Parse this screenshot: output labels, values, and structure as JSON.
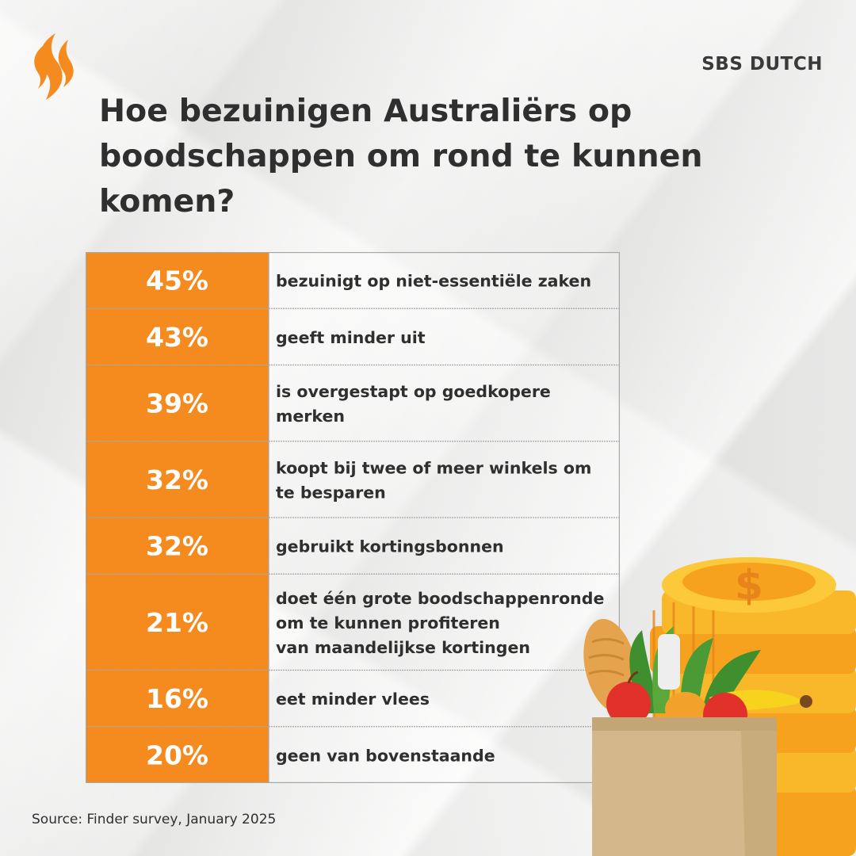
{
  "brand": "SBS DUTCH",
  "title": "Hoe bezuinigen Australiërs op boodschappen om rond te kunnen komen?",
  "source": "Source: Finder survey, January 2025",
  "colors": {
    "accent": "#f58a1f",
    "text": "#2f2f2f",
    "border": "#a7a7a7"
  },
  "icons": [
    "sbs-logo-icon",
    "coins-icon",
    "grocery-bag-icon"
  ],
  "chart_data": {
    "type": "table",
    "title": "Hoe bezuinigen Australiërs op boodschappen om rond te kunnen komen?",
    "unit": "%",
    "rows": [
      {
        "value": 45,
        "value_label": "45%",
        "label_lines": [
          "bezuinigt op niet-essentiële zaken"
        ]
      },
      {
        "value": 43,
        "value_label": "43%",
        "label_lines": [
          "geeft minder uit"
        ]
      },
      {
        "value": 39,
        "value_label": "39%",
        "label_lines": [
          "is overgestapt op goedkopere",
          "merken"
        ]
      },
      {
        "value": 32,
        "value_label": "32%",
        "label_lines": [
          "koopt bij twee of meer winkels om",
          "te besparen"
        ]
      },
      {
        "value": 32,
        "value_label": "32%",
        "label_lines": [
          "gebruikt kortingsbonnen"
        ]
      },
      {
        "value": 21,
        "value_label": "21%",
        "label_lines": [
          "doet één grote boodschappenronde",
          "om te kunnen profiteren",
          "van maandelijkse kortingen"
        ]
      },
      {
        "value": 16,
        "value_label": "16%",
        "label_lines": [
          "eet minder vlees"
        ]
      },
      {
        "value": 20,
        "value_label": "20%",
        "label_lines": [
          "geen van bovenstaande"
        ]
      }
    ]
  }
}
